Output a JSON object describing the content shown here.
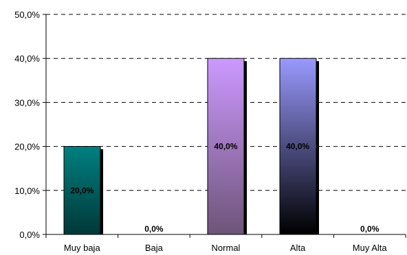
{
  "chart_data": {
    "type": "bar",
    "title": "",
    "xlabel": "",
    "ylabel": "",
    "categories": [
      "Muy baja",
      "Baja",
      "Normal",
      "Alta",
      "Muy Alta"
    ],
    "values": [
      20,
      0,
      40,
      40,
      0
    ],
    "data_labels": [
      "20,0%",
      "0,0%",
      "40,0%",
      "40,0%",
      "0,0%"
    ],
    "ylim": [
      0,
      50
    ],
    "yticks": [
      0,
      10,
      20,
      30,
      40,
      50
    ],
    "ytick_labels": [
      "0,0%",
      "10,0%",
      "20,0%",
      "30,0%",
      "40,0%",
      "50,0%"
    ],
    "grid": true,
    "grid_style": "dashed",
    "legend": "none",
    "bar_gradients": [
      {
        "top": "#008080",
        "bottom": "#003838"
      },
      {
        "top": "#cfcfcf",
        "bottom": "#777777"
      },
      {
        "top": "#cc99ff",
        "bottom": "#6e5478"
      },
      {
        "top": "#9999ff",
        "bottom": "#000000"
      },
      {
        "top": "#cfcfcf",
        "bottom": "#777777"
      }
    ],
    "shadow_color": "#000000",
    "bar_border_color": "#000000"
  }
}
